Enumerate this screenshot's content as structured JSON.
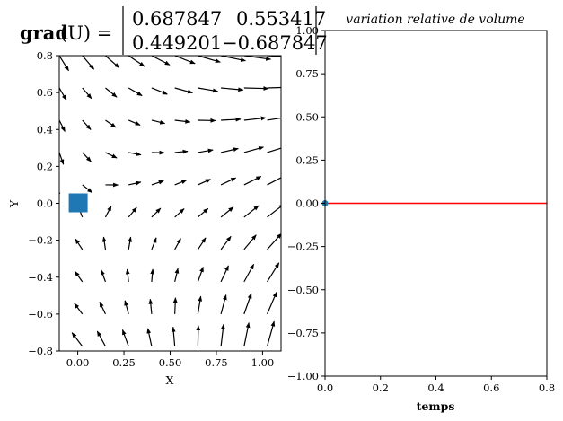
{
  "equation": {
    "lhs_bold": "grad",
    "lhs_rest": "(U) =",
    "matrix": [
      [
        "0.687847",
        "0.553417"
      ],
      [
        "0.449201",
        "−0.687847"
      ]
    ]
  },
  "chart_data": [
    {
      "type": "quiver",
      "xlabel": "X",
      "ylabel": "Y",
      "xlim": [
        -0.1,
        1.1
      ],
      "ylim": [
        -0.8,
        0.8
      ],
      "x_ticks": [
        "0.00",
        "0.25",
        "0.50",
        "0.75",
        "1.00"
      ],
      "y_ticks": [
        "−0.8",
        "−0.6",
        "−0.4",
        "−0.2",
        "0.0",
        "0.2",
        "0.4",
        "0.6",
        "0.8"
      ],
      "grad": [
        [
          0.687847,
          0.553417
        ],
        [
          0.449201,
          -0.687847
        ]
      ],
      "grid_x": [
        -0.1,
        0.025,
        0.15,
        0.275,
        0.4,
        0.525,
        0.65,
        0.775,
        0.9,
        1.025
      ],
      "grid_y": [
        -0.775,
        -0.6,
        -0.425,
        -0.25,
        -0.075,
        0.1,
        0.275,
        0.45,
        0.625,
        0.8
      ],
      "marker": {
        "x": 0.0,
        "y": 0.0,
        "color": "#1f77b4"
      },
      "grid": false
    },
    {
      "type": "line",
      "title": "variation relative de volume",
      "xlabel": "temps",
      "ylabel": "",
      "xlim": [
        0,
        0.8
      ],
      "ylim": [
        -1,
        1
      ],
      "x_ticks": [
        "0.0",
        "0.2",
        "0.4",
        "0.6",
        "0.8"
      ],
      "y_ticks": [
        "−1.00",
        "−0.75",
        "−0.50",
        "−0.25",
        "0.00",
        "0.25",
        "0.50",
        "0.75",
        "1.00"
      ],
      "series": [
        {
          "x": [
            0.0,
            0.8
          ],
          "y": [
            0.0,
            0.0
          ],
          "color": "#ff0000"
        }
      ],
      "point": {
        "x": 0.0,
        "y": 0.0,
        "color": "#1f77b4"
      },
      "grid": false
    }
  ]
}
